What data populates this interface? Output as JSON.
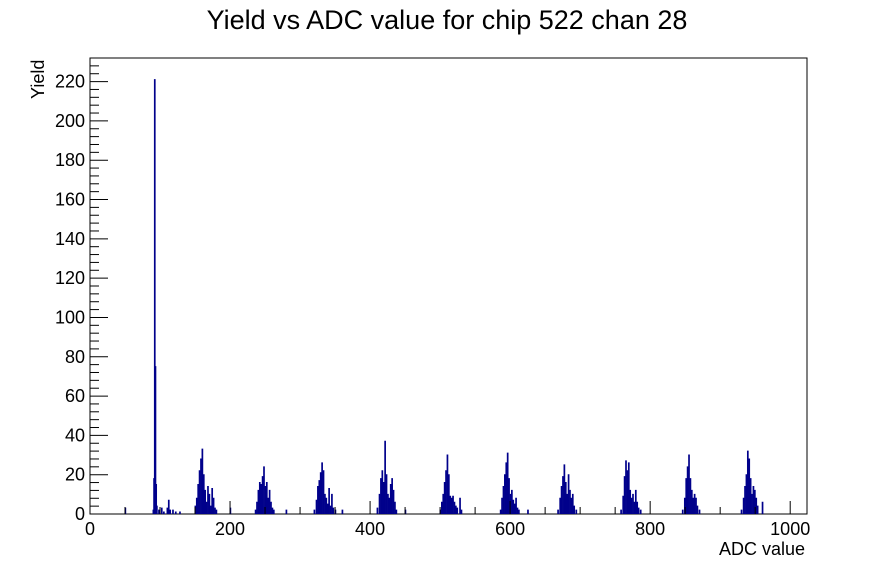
{
  "chart_data": {
    "type": "bar",
    "title": "Yield vs ADC value for chip 522 chan 28",
    "xlabel": "ADC value",
    "ylabel": "Yield",
    "xlim": [
      0,
      1024
    ],
    "ylim": [
      0,
      232
    ],
    "x_ticks": [
      "0",
      "200",
      "400",
      "600",
      "800",
      "1000"
    ],
    "y_ticks": [
      "0",
      "20",
      "40",
      "60",
      "80",
      "100",
      "120",
      "140",
      "160",
      "180",
      "200",
      "220"
    ],
    "grid": false,
    "legend": "none",
    "series": [
      {
        "color": "#00008b",
        "bins": [
          [
            50,
            3
          ],
          [
            90,
            2
          ],
          [
            91,
            18
          ],
          [
            92,
            221
          ],
          [
            93,
            75
          ],
          [
            94,
            15
          ],
          [
            95,
            4
          ],
          [
            98,
            2
          ],
          [
            102,
            3
          ],
          [
            105,
            1
          ],
          [
            110,
            3
          ],
          [
            112,
            7
          ],
          [
            114,
            2
          ],
          [
            118,
            2
          ],
          [
            122,
            1
          ],
          [
            128,
            1
          ],
          [
            150,
            4
          ],
          [
            152,
            8
          ],
          [
            154,
            15
          ],
          [
            156,
            22
          ],
          [
            158,
            28
          ],
          [
            160,
            33
          ],
          [
            162,
            20
          ],
          [
            164,
            12
          ],
          [
            166,
            6
          ],
          [
            168,
            14
          ],
          [
            170,
            10
          ],
          [
            172,
            4
          ],
          [
            174,
            13
          ],
          [
            176,
            8
          ],
          [
            178,
            3
          ],
          [
            180,
            2
          ],
          [
            200,
            3
          ],
          [
            236,
            2
          ],
          [
            238,
            6
          ],
          [
            240,
            12
          ],
          [
            242,
            16
          ],
          [
            244,
            15
          ],
          [
            246,
            19
          ],
          [
            248,
            24
          ],
          [
            250,
            14
          ],
          [
            252,
            16
          ],
          [
            254,
            8
          ],
          [
            256,
            12
          ],
          [
            258,
            6
          ],
          [
            260,
            3
          ],
          [
            262,
            2
          ],
          [
            280,
            2
          ],
          [
            320,
            2
          ],
          [
            323,
            7
          ],
          [
            325,
            14
          ],
          [
            327,
            17
          ],
          [
            329,
            21
          ],
          [
            331,
            26
          ],
          [
            333,
            22
          ],
          [
            335,
            10
          ],
          [
            337,
            8
          ],
          [
            339,
            5
          ],
          [
            341,
            13
          ],
          [
            343,
            4
          ],
          [
            345,
            10
          ],
          [
            347,
            3
          ],
          [
            350,
            2
          ],
          [
            360,
            2
          ],
          [
            410,
            3
          ],
          [
            413,
            10
          ],
          [
            415,
            18
          ],
          [
            417,
            22
          ],
          [
            419,
            16
          ],
          [
            421,
            37
          ],
          [
            423,
            20
          ],
          [
            425,
            10
          ],
          [
            427,
            8
          ],
          [
            429,
            15
          ],
          [
            431,
            18
          ],
          [
            433,
            12
          ],
          [
            435,
            6
          ],
          [
            437,
            2
          ],
          [
            450,
            2
          ],
          [
            500,
            2
          ],
          [
            502,
            6
          ],
          [
            504,
            10
          ],
          [
            506,
            16
          ],
          [
            508,
            22
          ],
          [
            510,
            30
          ],
          [
            512,
            20
          ],
          [
            514,
            9
          ],
          [
            516,
            8
          ],
          [
            518,
            9
          ],
          [
            520,
            6
          ],
          [
            522,
            4
          ],
          [
            524,
            3
          ],
          [
            528,
            8
          ],
          [
            530,
            2
          ],
          [
            586,
            2
          ],
          [
            588,
            8
          ],
          [
            590,
            14
          ],
          [
            592,
            20
          ],
          [
            594,
            26
          ],
          [
            596,
            31
          ],
          [
            598,
            18
          ],
          [
            600,
            10
          ],
          [
            602,
            12
          ],
          [
            604,
            7
          ],
          [
            606,
            5
          ],
          [
            608,
            8
          ],
          [
            610,
            3
          ],
          [
            612,
            2
          ],
          [
            625,
            2
          ],
          [
            668,
            2
          ],
          [
            671,
            8
          ],
          [
            673,
            14
          ],
          [
            675,
            19
          ],
          [
            677,
            25
          ],
          [
            679,
            16
          ],
          [
            681,
            10
          ],
          [
            683,
            20
          ],
          [
            685,
            12
          ],
          [
            687,
            8
          ],
          [
            689,
            10
          ],
          [
            691,
            4
          ],
          [
            694,
            2
          ],
          [
            758,
            2
          ],
          [
            761,
            9
          ],
          [
            763,
            19
          ],
          [
            765,
            27
          ],
          [
            767,
            22
          ],
          [
            769,
            26
          ],
          [
            771,
            12
          ],
          [
            773,
            8
          ],
          [
            775,
            10
          ],
          [
            777,
            6
          ],
          [
            779,
            12
          ],
          [
            781,
            6
          ],
          [
            783,
            3
          ],
          [
            786,
            2
          ],
          [
            846,
            2
          ],
          [
            849,
            8
          ],
          [
            851,
            18
          ],
          [
            853,
            24
          ],
          [
            855,
            30
          ],
          [
            857,
            18
          ],
          [
            859,
            12
          ],
          [
            861,
            8
          ],
          [
            863,
            10
          ],
          [
            865,
            8
          ],
          [
            867,
            4
          ],
          [
            870,
            2
          ],
          [
            930,
            2
          ],
          [
            933,
            8
          ],
          [
            935,
            14
          ],
          [
            937,
            20
          ],
          [
            939,
            32
          ],
          [
            941,
            28
          ],
          [
            943,
            18
          ],
          [
            945,
            10
          ],
          [
            947,
            14
          ],
          [
            949,
            12
          ],
          [
            951,
            8
          ],
          [
            953,
            4
          ],
          [
            960,
            6
          ]
        ]
      }
    ]
  }
}
